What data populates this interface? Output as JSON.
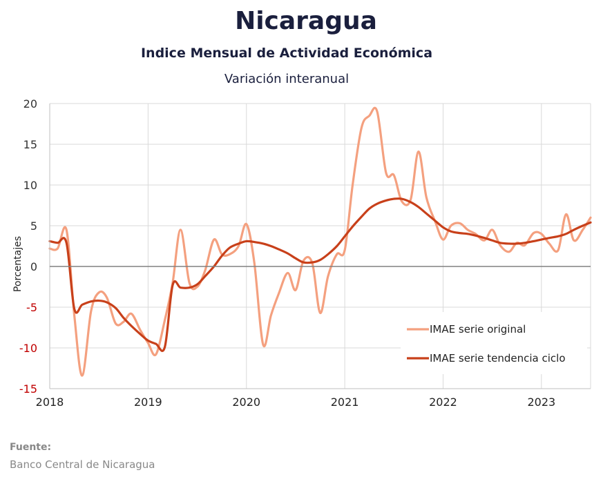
{
  "chart_data": {
    "type": "line",
    "title": "Nicaragua",
    "subtitle": "Indice Mensual de  Actividad Económica",
    "subsubtitle": "Variación interanual",
    "ylabel": "Porcentajes",
    "xlabel": "",
    "ylim": [
      -15,
      20
    ],
    "yticks": [
      -15,
      -10,
      -5,
      0,
      5,
      10,
      15,
      20
    ],
    "ytick_labels": [
      "-15",
      "-10",
      "-5",
      "0",
      "5",
      "10",
      "15",
      "20"
    ],
    "xlim": [
      2018,
      2023.5
    ],
    "xticks": [
      2018,
      2019,
      2020,
      2021,
      2022,
      2023
    ],
    "xtick_labels": [
      "2018",
      "2019",
      "2020",
      "2021",
      "2022",
      "2023"
    ],
    "grid": true,
    "legend_position": "bottom-right",
    "colors": {
      "original": "#f4a07f",
      "trend": "#c8401a",
      "negative_tick": "#c00000",
      "positive_tick": "#333333",
      "zero_line": "#808080",
      "grid": "#d9d9d9"
    },
    "series": [
      {
        "name": "IMAE serie original",
        "x": [
          2018.0,
          2018.08,
          2018.17,
          2018.25,
          2018.33,
          2018.42,
          2018.5,
          2018.58,
          2018.67,
          2018.75,
          2018.83,
          2018.92,
          2019.0,
          2019.08,
          2019.17,
          2019.25,
          2019.33,
          2019.42,
          2019.5,
          2019.58,
          2019.67,
          2019.75,
          2019.83,
          2019.92,
          2020.0,
          2020.08,
          2020.17,
          2020.25,
          2020.33,
          2020.42,
          2020.5,
          2020.58,
          2020.67,
          2020.75,
          2020.83,
          2020.92,
          2021.0,
          2021.08,
          2021.17,
          2021.25,
          2021.33,
          2021.42,
          2021.5,
          2021.58,
          2021.67,
          2021.75,
          2021.83,
          2021.92,
          2022.0,
          2022.08,
          2022.17,
          2022.25,
          2022.33,
          2022.42,
          2022.5,
          2022.58,
          2022.67,
          2022.75,
          2022.83,
          2022.92,
          2023.0,
          2023.08,
          2023.17,
          2023.25,
          2023.33,
          2023.42,
          2023.5
        ],
        "values": [
          2.2,
          2.2,
          4.5,
          -6.0,
          -13.4,
          -5.5,
          -3.2,
          -3.8,
          -7.0,
          -6.8,
          -5.8,
          -7.8,
          -9.4,
          -10.8,
          -6.6,
          -2.0,
          4.5,
          -2.0,
          -2.5,
          -0.5,
          3.3,
          1.5,
          1.5,
          2.5,
          5.2,
          0.5,
          -9.6,
          -6.0,
          -3.3,
          -0.8,
          -2.9,
          0.7,
          0.4,
          -5.7,
          -1.2,
          1.5,
          2.0,
          10.0,
          17.0,
          18.5,
          19.0,
          11.5,
          11.2,
          8.0,
          8.2,
          14.1,
          8.5,
          5.5,
          3.3,
          5.0,
          5.3,
          4.5,
          4.0,
          3.2,
          4.5,
          2.6,
          1.8,
          2.9,
          2.6,
          4.1,
          4.0,
          2.8,
          2.0,
          6.4,
          3.2,
          4.5,
          6.0
        ]
      },
      {
        "name": "IMAE serie  tendencia ciclo",
        "x": [
          2018.0,
          2018.08,
          2018.17,
          2018.25,
          2018.33,
          2018.42,
          2018.5,
          2018.58,
          2018.67,
          2018.75,
          2018.83,
          2018.92,
          2019.0,
          2019.08,
          2019.17,
          2019.25,
          2019.33,
          2019.42,
          2019.5,
          2019.58,
          2019.67,
          2019.75,
          2019.83,
          2019.92,
          2020.0,
          2020.08,
          2020.17,
          2020.25,
          2020.33,
          2020.42,
          2020.5,
          2020.58,
          2020.67,
          2020.75,
          2020.83,
          2020.92,
          2021.0,
          2021.08,
          2021.17,
          2021.25,
          2021.33,
          2021.42,
          2021.5,
          2021.58,
          2021.67,
          2021.75,
          2021.83,
          2021.92,
          2022.0,
          2022.08,
          2022.17,
          2022.25,
          2022.33,
          2022.42,
          2022.5,
          2022.58,
          2022.67,
          2022.75,
          2022.83,
          2022.92,
          2023.0,
          2023.08,
          2023.17,
          2023.25,
          2023.33,
          2023.42,
          2023.5
        ],
        "values": [
          3.1,
          2.9,
          2.9,
          -5.2,
          -4.7,
          -4.3,
          -4.2,
          -4.4,
          -5.1,
          -6.3,
          -7.3,
          -8.3,
          -9.1,
          -9.5,
          -9.9,
          -2.3,
          -2.6,
          -2.6,
          -2.2,
          -1.2,
          0.0,
          1.3,
          2.3,
          2.8,
          3.1,
          3.0,
          2.8,
          2.5,
          2.1,
          1.6,
          1.0,
          0.5,
          0.5,
          0.8,
          1.5,
          2.5,
          3.7,
          4.9,
          6.1,
          7.1,
          7.7,
          8.1,
          8.3,
          8.3,
          7.9,
          7.3,
          6.5,
          5.6,
          4.8,
          4.3,
          4.1,
          4.0,
          3.8,
          3.5,
          3.2,
          2.9,
          2.8,
          2.8,
          2.9,
          3.1,
          3.3,
          3.5,
          3.7,
          4.0,
          4.5,
          5.0,
          5.4
        ]
      }
    ]
  },
  "source": {
    "label": "Fuente:",
    "text": "Banco Central de Nicaragua"
  }
}
